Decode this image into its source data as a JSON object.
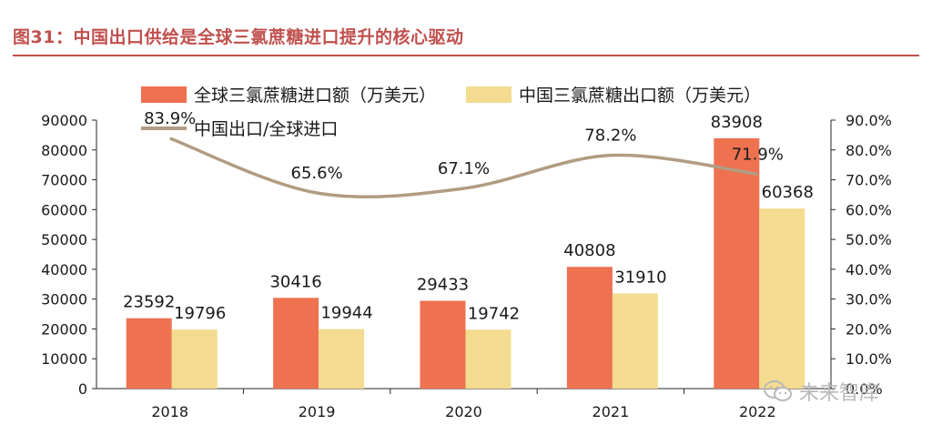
{
  "figure": {
    "title": "图31：中国出口供给是全球三氯蔗糖进口提升的核心驱动",
    "watermark": "未来智库",
    "colors": {
      "title": "#c0504d",
      "import_bar": "#ee7150",
      "export_bar": "#f3dc8f",
      "ratio_line": "#b19c82",
      "axis": "#262626",
      "text": "#1a1a1a",
      "rule": "#c0504d"
    }
  },
  "chart_data": {
    "type": "bar",
    "categories": [
      "2018",
      "2019",
      "2020",
      "2021",
      "2022"
    ],
    "series": [
      {
        "name": "全球三氯蔗糖进口额（万美元）",
        "kind": "bar",
        "axis": "left",
        "values": [
          23592,
          30416,
          29433,
          40808,
          83908
        ],
        "labels": [
          "23592",
          "30416",
          "29433",
          "40808",
          "83908"
        ]
      },
      {
        "name": "中国三氯蔗糖出口额（万美元）",
        "kind": "bar",
        "axis": "left",
        "values": [
          19796,
          19944,
          19742,
          31910,
          60368
        ],
        "labels": [
          "19796",
          "19944",
          "19742",
          "31910",
          "60368"
        ]
      },
      {
        "name": "中国出口/全球进口",
        "kind": "line",
        "axis": "right",
        "values": [
          83.9,
          65.6,
          67.1,
          78.2,
          71.9
        ],
        "labels": [
          "83.9%",
          "65.6%",
          "67.1%",
          "78.2%",
          "71.9%"
        ]
      }
    ],
    "y_left": {
      "range": [
        0,
        90000
      ],
      "ticks": [
        "0",
        "10000",
        "20000",
        "30000",
        "40000",
        "50000",
        "60000",
        "70000",
        "80000",
        "90000"
      ]
    },
    "y_right": {
      "range": [
        0,
        90
      ],
      "ticks": [
        "0.0%",
        "10.0%",
        "20.0%",
        "30.0%",
        "40.0%",
        "50.0%",
        "60.0%",
        "70.0%",
        "80.0%",
        "90.0%"
      ]
    },
    "legend_position": "top-left",
    "grid": false
  }
}
